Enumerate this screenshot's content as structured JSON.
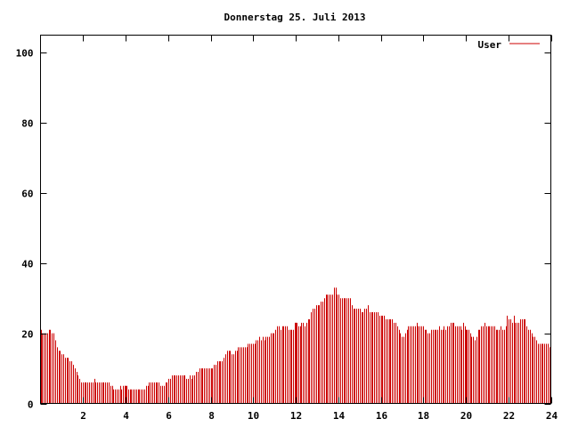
{
  "chart_data": {
    "type": "bar",
    "title": "Donnerstag 25. Juli 2013",
    "xlabel": "",
    "ylabel": "",
    "xlim": [
      0,
      24
    ],
    "ylim": [
      0,
      105
    ],
    "x_ticks": [
      2,
      4,
      6,
      8,
      10,
      12,
      14,
      16,
      18,
      20,
      22,
      24
    ],
    "y_ticks": [
      0,
      20,
      40,
      60,
      80,
      100
    ],
    "grid": false,
    "legend_position": "top-right",
    "series": [
      {
        "name": "User",
        "color": "#cc0000",
        "values": [
          21,
          20,
          20,
          20,
          20,
          21,
          21,
          20,
          20,
          18,
          16,
          15,
          15,
          14,
          14,
          13,
          13,
          13,
          12,
          12,
          11,
          10,
          9,
          8,
          7,
          6,
          6,
          6,
          6,
          6,
          6,
          6,
          6,
          7,
          6,
          6,
          6,
          6,
          6,
          6,
          6,
          6,
          6,
          5,
          5,
          4,
          4,
          4,
          4,
          5,
          4,
          5,
          5,
          5,
          4,
          4,
          4,
          4,
          4,
          4,
          4,
          4,
          4,
          4,
          4,
          5,
          5,
          6,
          6,
          6,
          6,
          6,
          6,
          6,
          5,
          5,
          5,
          6,
          6,
          7,
          7,
          8,
          8,
          8,
          8,
          8,
          8,
          8,
          8,
          8,
          7,
          7,
          8,
          7,
          8,
          8,
          9,
          9,
          10,
          10,
          10,
          10,
          10,
          10,
          10,
          10,
          10,
          11,
          11,
          12,
          12,
          12,
          12,
          13,
          14,
          15,
          15,
          15,
          14,
          14,
          15,
          15,
          16,
          16,
          16,
          16,
          16,
          16,
          17,
          17,
          17,
          17,
          17,
          18,
          18,
          19,
          18,
          19,
          18,
          19,
          19,
          19,
          20,
          20,
          20,
          21,
          22,
          22,
          21,
          22,
          22,
          22,
          22,
          21,
          21,
          21,
          21,
          22,
          23,
          22,
          22,
          23,
          23,
          22,
          23,
          24,
          24,
          26,
          27,
          27,
          28,
          28,
          28,
          29,
          29,
          30,
          31,
          31,
          31,
          31,
          31,
          33,
          33,
          31,
          31,
          30,
          30,
          30,
          30,
          30,
          30,
          30,
          28,
          27,
          27,
          27,
          27,
          27,
          26,
          26,
          27,
          27,
          28,
          26,
          26,
          26,
          26,
          26,
          26,
          25,
          25,
          25,
          25,
          24,
          24,
          24,
          24,
          24,
          23,
          23,
          22,
          21,
          20,
          19,
          19,
          20,
          21,
          22,
          22,
          22,
          22,
          22,
          23,
          22,
          22,
          22,
          22,
          21,
          21,
          20,
          20,
          21,
          21,
          21,
          21,
          21,
          22,
          21,
          21,
          22,
          21,
          22,
          22,
          23,
          23,
          23,
          22,
          22,
          22,
          22,
          21,
          23,
          22,
          21,
          21,
          20,
          19,
          19,
          18,
          19,
          21,
          21,
          22,
          22,
          23,
          22,
          22,
          22,
          22,
          22,
          22,
          21,
          21,
          21,
          22,
          21,
          21,
          22,
          25,
          24,
          24,
          23,
          25,
          23,
          23,
          23,
          24,
          24,
          24,
          24,
          22,
          21,
          21,
          20,
          19,
          19,
          18,
          17,
          17,
          17,
          17,
          17,
          17,
          17,
          16
        ],
        "highlighted_x": [
          4,
          12,
          20
        ]
      }
    ]
  }
}
